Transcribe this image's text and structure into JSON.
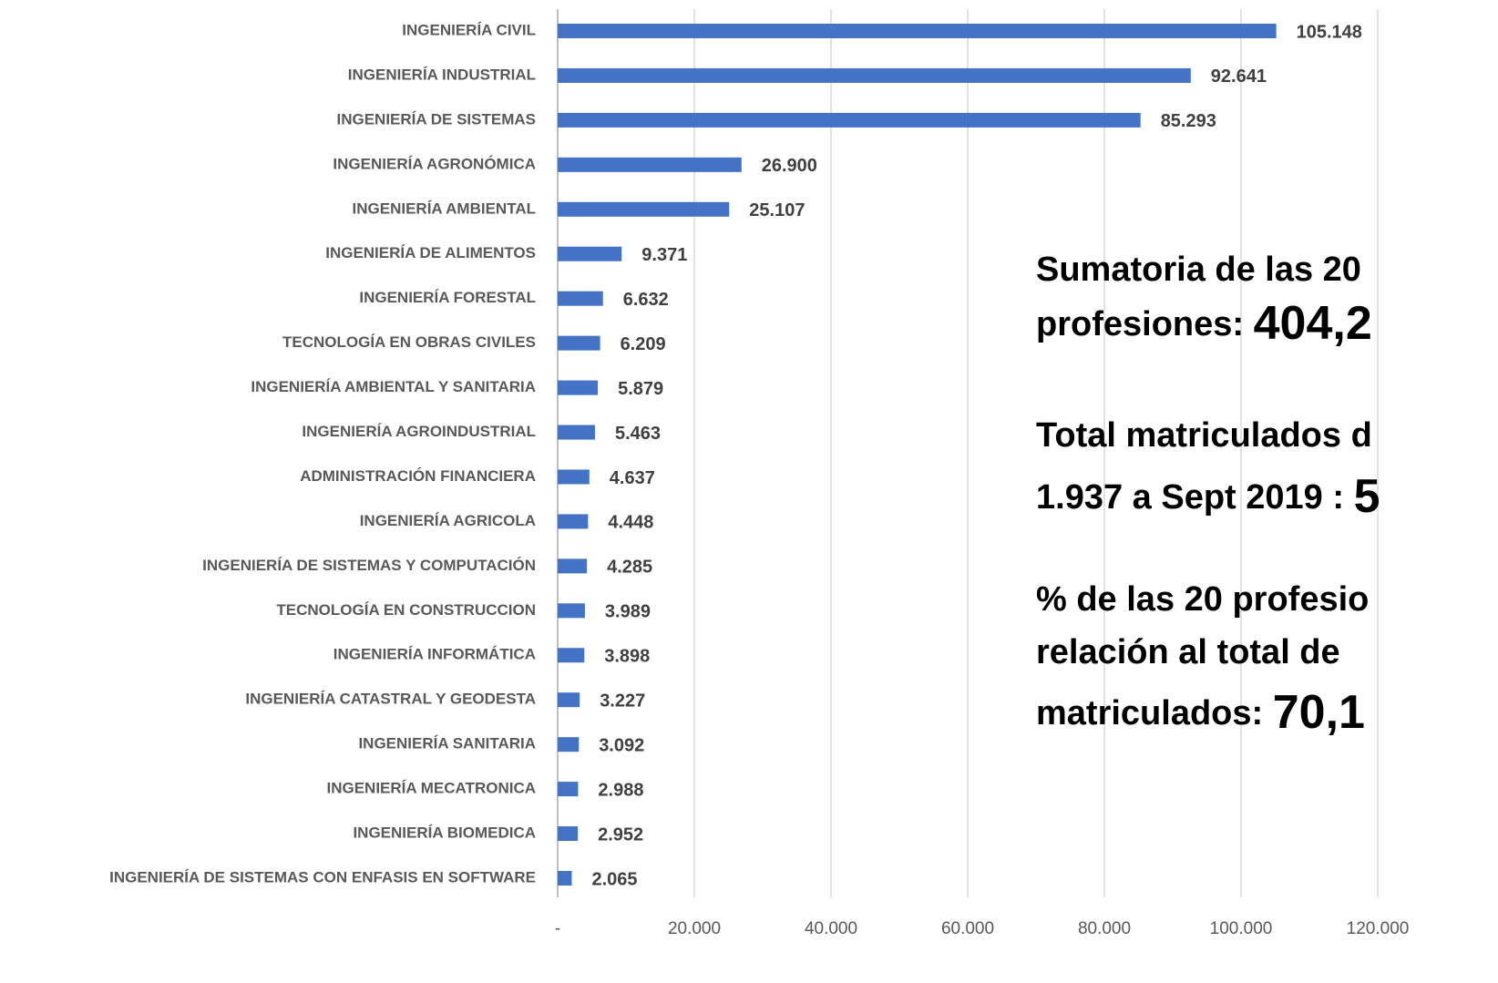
{
  "chart_data": {
    "type": "bar",
    "orientation": "horizontal",
    "categories": [
      "INGENIERÍA CIVIL",
      "INGENIERÍA INDUSTRIAL",
      "INGENIERÍA DE SISTEMAS",
      "INGENIERÍA AGRONÓMICA",
      "INGENIERÍA AMBIENTAL",
      "INGENIERÍA DE ALIMENTOS",
      "INGENIERÍA FORESTAL",
      "TECNOLOGÍA EN OBRAS CIVILES",
      "INGENIERÍA AMBIENTAL Y SANITARIA",
      "INGENIERÍA AGROINDUSTRIAL",
      "ADMINISTRACIÓN FINANCIERA",
      "INGENIERÍA AGRICOLA",
      "INGENIERÍA DE SISTEMAS Y COMPUTACIÓN",
      "TECNOLOGÍA EN CONSTRUCCION",
      "INGENIERÍA INFORMÁTICA",
      "INGENIERÍA CATASTRAL Y GEODESTA",
      "INGENIERÍA SANITARIA",
      "INGENIERÍA MECATRONICA",
      "INGENIERÍA BIOMEDICA",
      "INGENIERÍA DE SISTEMAS CON ENFASIS EN SOFTWARE"
    ],
    "values": [
      105148,
      92641,
      85293,
      26900,
      25107,
      9371,
      6632,
      6209,
      5879,
      5463,
      4637,
      4448,
      4285,
      3989,
      3898,
      3227,
      3092,
      2988,
      2952,
      2065
    ],
    "value_labels": [
      "105.148",
      "92.641",
      "85.293",
      "26.900",
      "25.107",
      "9.371",
      "6.632",
      "6.209",
      "5.879",
      "5.463",
      "4.637",
      "4.448",
      "4.285",
      "3.989",
      "3.898",
      "3.227",
      "3.092",
      "2.988",
      "2.952",
      "2.065"
    ],
    "color": "#4472c4",
    "xlim": [
      0,
      120000
    ],
    "xticks": [
      {
        "value": 0,
        "label": "-"
      },
      {
        "value": 20000,
        "label": "20.000"
      },
      {
        "value": 40000,
        "label": "40.000"
      },
      {
        "value": 60000,
        "label": "60.000"
      },
      {
        "value": 80000,
        "label": "80.000"
      },
      {
        "value": 100000,
        "label": "100.000"
      },
      {
        "value": 120000,
        "label": "120.000"
      }
    ],
    "grid": true,
    "annotations": [
      [
        "Sumatoria de las 20"
      ],
      [
        "profesiones: ",
        "404,2"
      ],
      [
        "Total matriculados d"
      ],
      [
        "1.937 a Sept 2019 : ",
        "5"
      ],
      [
        "% de las 20 profesio"
      ],
      [
        "relación al total de"
      ],
      [
        "matriculados: ",
        "70,1"
      ]
    ]
  }
}
